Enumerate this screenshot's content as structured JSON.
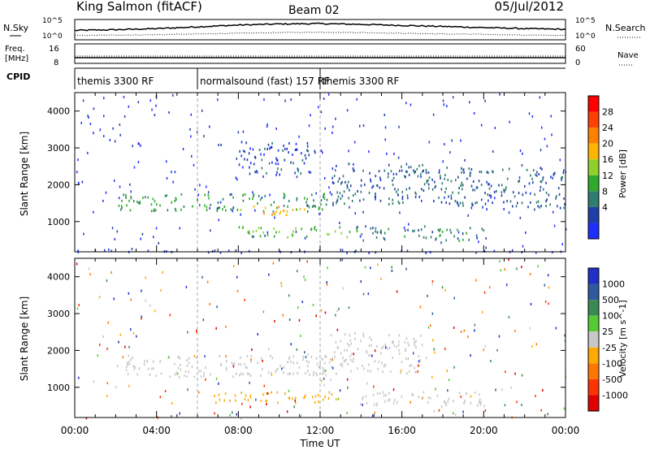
{
  "chart_data": [
    {
      "type": "line",
      "header": {
        "site": "King Salmon (fitACF)",
        "beam": "Beam 02",
        "date": "05/Jul/2012"
      },
      "left_label": "N.Sky",
      "right_label": "N.Search",
      "left_ticks": [
        "10^5",
        "10^0"
      ],
      "right_ticks": [
        "10^5",
        "10^0"
      ],
      "series": [
        {
          "name": "N.Sky",
          "style": "solid",
          "x": [
            0,
            2,
            4,
            6,
            8,
            10,
            12,
            14,
            16,
            18,
            20,
            22,
            24
          ],
          "values": [
            2.4,
            2.6,
            2.9,
            3.4,
            3.9,
            4.2,
            4.3,
            4.1,
            3.8,
            3.5,
            3.2,
            2.9,
            2.7
          ]
        },
        {
          "name": "N.Search",
          "style": "dotted",
          "x": [
            0,
            2,
            4,
            6,
            8,
            10,
            12,
            14,
            16,
            18,
            20,
            22,
            24
          ],
          "values": [
            1.0,
            1.1,
            1.2,
            1.4,
            1.6,
            1.8,
            1.9,
            1.8,
            1.6,
            1.4,
            1.3,
            1.1,
            1.0
          ]
        }
      ]
    },
    {
      "type": "line",
      "left_label_lines": [
        "Freq.",
        "[MHz]"
      ],
      "right_label": "Nave",
      "left_ticks": [
        "16",
        "8"
      ],
      "right_ticks": [
        "60",
        "0"
      ],
      "series": [
        {
          "name": "Freq.",
          "style": "solid",
          "x": [
            0,
            24
          ],
          "values": [
            10.4,
            10.4
          ]
        },
        {
          "name": "Nave",
          "style": "dotted",
          "x": [
            0,
            24
          ],
          "values": [
            24,
            24
          ]
        }
      ]
    },
    {
      "type": "table",
      "label": "CPID",
      "segments": [
        {
          "start": 0,
          "end": 6,
          "text": "themis 3300 RF"
        },
        {
          "start": 6,
          "end": 12,
          "text": "normalsound (fast) 157 RF"
        },
        {
          "start": 12,
          "end": 24,
          "text": "themis 3300 RF"
        }
      ]
    },
    {
      "type": "heatmap",
      "ylabel": "Slant Range [km]",
      "yticks": [
        1000,
        2000,
        3000,
        4000
      ],
      "ylim": [
        180,
        4500
      ],
      "xlim": [
        0,
        24
      ],
      "colorbar": {
        "label": "Power [dB]",
        "ticks": [
          4,
          8,
          12,
          16,
          20,
          24,
          28
        ],
        "colors": [
          "#1f2fff",
          "#1f3fa8",
          "#2e7d6e",
          "#2faa2a",
          "#8fd12a",
          "#ffb400",
          "#ff8000",
          "#ff4000",
          "#ff0000"
        ]
      },
      "regions": [
        {
          "desc": "ground band",
          "x": [
            0,
            24
          ],
          "r": [
            180,
            250
          ],
          "level": 4
        },
        {
          "desc": "main echo band",
          "x": [
            2,
            12.5
          ],
          "r": [
            1300,
            1800
          ],
          "level": 12
        },
        {
          "desc": "strong core",
          "x": [
            8,
            11.5
          ],
          "r": [
            1200,
            1450
          ],
          "level": 22
        },
        {
          "desc": "lower band",
          "x": [
            8,
            14
          ],
          "r": [
            600,
            900
          ],
          "level": 16
        },
        {
          "desc": "rising arc",
          "x": [
            12.5,
            17
          ],
          "r": [
            1500,
            2600
          ],
          "level": 8
        },
        {
          "desc": "falling arc",
          "x": [
            17,
            24
          ],
          "r": [
            1400,
            2500
          ],
          "level": 8
        },
        {
          "desc": "late lower band",
          "x": [
            14,
            20
          ],
          "r": [
            500,
            900
          ],
          "level": 10
        },
        {
          "desc": "upper patch",
          "x": [
            8,
            11.5
          ],
          "r": [
            2300,
            3200
          ],
          "level": 6
        }
      ]
    },
    {
      "type": "heatmap",
      "ylabel": "Slant Range [km]",
      "yticks": [
        1000,
        2000,
        3000,
        4000
      ],
      "ylim": [
        180,
        4500
      ],
      "xlim": [
        0,
        24
      ],
      "xlabel": "Time UT",
      "xticks": [
        "00:00",
        "04:00",
        "08:00",
        "12:00",
        "16:00",
        "20:00",
        "00:00"
      ],
      "colorbar": {
        "label": "Velocity [m s^-1]",
        "ticks": [
          1000,
          500,
          100,
          25,
          -25,
          -100,
          -500,
          -1000
        ],
        "colors": [
          "#2030c8",
          "#2f5aa0",
          "#3a8a55",
          "#55cc33",
          "#c8c8c8",
          "#ffaa00",
          "#ff7700",
          "#ff3300",
          "#e00000"
        ]
      },
      "regions": [
        {
          "desc": "main band (grey, low velocity)",
          "x": [
            2,
            12.5
          ],
          "r": [
            1300,
            1900
          ],
          "level": 0
        },
        {
          "desc": "lower band (orange, away)",
          "x": [
            6.5,
            13
          ],
          "r": [
            600,
            900
          ],
          "level": -100
        },
        {
          "desc": "rising arc (grey)",
          "x": [
            12.5,
            17
          ],
          "r": [
            1400,
            2500
          ],
          "level": 0
        },
        {
          "desc": "late band (grey)",
          "x": [
            14,
            20
          ],
          "r": [
            500,
            900
          ],
          "level": 0
        },
        {
          "desc": "orange patch",
          "x": [
            18.7,
            19.4
          ],
          "r": [
            2400,
            2600
          ],
          "level": -300
        }
      ]
    }
  ]
}
